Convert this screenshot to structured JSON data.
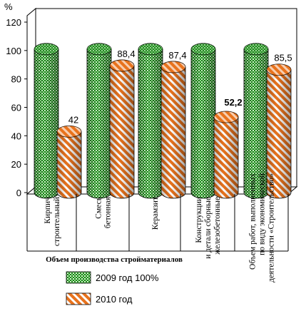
{
  "chart_data": {
    "type": "bar",
    "ylabel": "%",
    "ylim": [
      0,
      120
    ],
    "yticks": [
      0,
      20,
      40,
      60,
      80,
      100,
      120
    ],
    "xlabel": "Объем производства стройматериалов",
    "categories": [
      [
        "Кирпич",
        "строительный"
      ],
      [
        "Смесь",
        "бетонная"
      ],
      [
        "Керамзит"
      ],
      [
        "Конструкции",
        "и детали сборные",
        "железобетонные"
      ],
      [
        "Объем работ, выполненных",
        "по виду экономической",
        "деятельности «Строительство»"
      ]
    ],
    "series": [
      {
        "name": "2009 год 100%",
        "values": [
          100,
          100,
          100,
          100,
          100
        ],
        "labels": [
          "",
          "",
          "",
          "",
          ""
        ],
        "color": "#2f8f2a"
      },
      {
        "name": "2010 год",
        "values": [
          42,
          88.4,
          87.4,
          52.2,
          85.5
        ],
        "labels": [
          "42",
          "88,4",
          "87,4",
          "52,2",
          "85,5"
        ],
        "color": "#e8731e"
      }
    ],
    "legend_position": "bottom",
    "grid": false
  }
}
